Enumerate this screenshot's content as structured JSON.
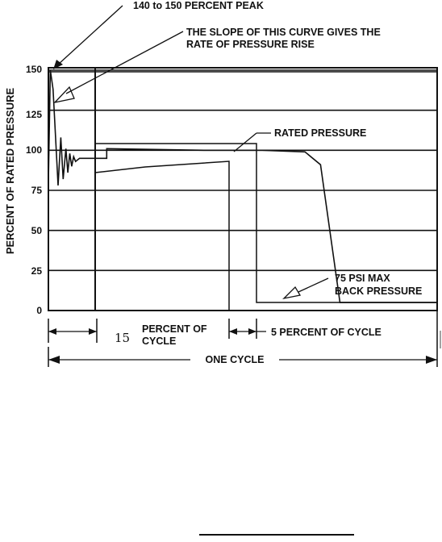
{
  "chart_data": {
    "type": "line",
    "title": "",
    "xlabel": "",
    "ylabel": "PERCENT OF RATED PRESSURE",
    "ylim": [
      0,
      150
    ],
    "yticks": [
      "0",
      "25",
      "50",
      "75",
      "100",
      "125",
      "150"
    ],
    "grid": true,
    "series": [
      {
        "name": "",
        "x": [
          0,
          0.5,
          1.2,
          2.5,
          3.2,
          3.8,
          4.5,
          5.0,
          5.5,
          6.0,
          6.5,
          7.0,
          8.0,
          9.0,
          15,
          15,
          40,
          55,
          66,
          70,
          75,
          100
        ],
        "y": [
          80,
          150,
          138,
          78,
          108,
          82,
          101,
          86,
          98,
          90,
          96,
          93,
          95,
          95,
          95,
          101,
          100,
          100,
          99,
          91,
          5,
          5
        ]
      }
    ],
    "annotations": {
      "peak": "140 to 150  PERCENT PEAK",
      "slope_line1": "THE SLOPE OF THIS CURVE GIVES THE",
      "slope_line2": "RATE OF PRESSURE RISE",
      "rated": "RATED PRESSURE",
      "back_line1": "75 PSI MAX",
      "back_line2": "BACK PRESSURE",
      "pct_line1": "PERCENT OF",
      "pct_line2": "CYCLE",
      "pct_hand": "15",
      "five": "5 PERCENT OF CYCLE",
      "one_cycle": "ONE CYCLE"
    }
  }
}
